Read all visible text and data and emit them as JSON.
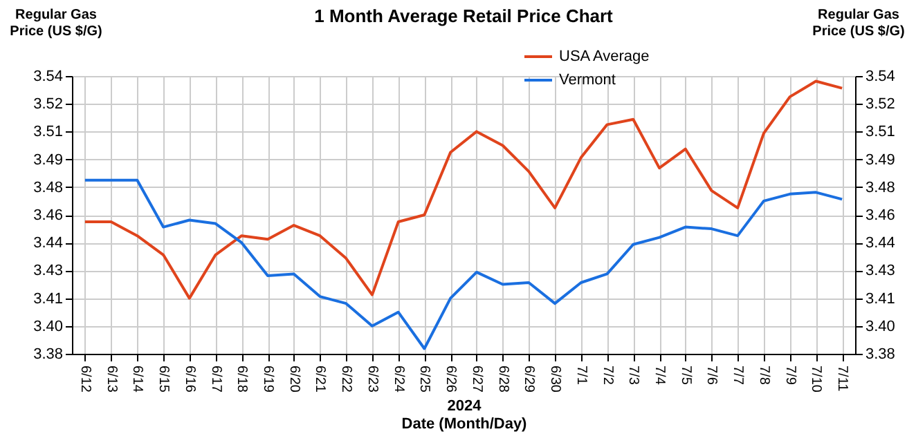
{
  "chart_data": {
    "type": "line",
    "title": "1 Month Average Retail Price Chart",
    "xlabel": "Date (Month/Day)",
    "ylabel": "Regular Gas Price (US $/G)",
    "y2label": "Regular Gas Price (US $/G)",
    "annotations": [
      "2024"
    ],
    "categories": [
      "6/12",
      "6/13",
      "6/14",
      "6/15",
      "6/16",
      "6/17",
      "6/18",
      "6/19",
      "6/20",
      "6/21",
      "6/22",
      "6/23",
      "6/24",
      "6/25",
      "6/26",
      "6/27",
      "6/28",
      "6/29",
      "6/30",
      "7/1",
      "7/2",
      "7/3",
      "7/4",
      "7/5",
      "7/6",
      "7/7",
      "7/8",
      "7/9",
      "7/10",
      "7/11"
    ],
    "series": [
      {
        "name": "USA Average",
        "color": "#e0441c",
        "values": [
          3.456,
          3.456,
          3.448,
          3.437,
          3.412,
          3.437,
          3.448,
          3.446,
          3.454,
          3.448,
          3.435,
          3.414,
          3.456,
          3.46,
          3.496,
          3.508,
          3.5,
          3.485,
          3.464,
          3.493,
          3.512,
          3.515,
          3.487,
          3.498,
          3.474,
          3.464,
          3.507,
          3.528,
          3.537,
          3.533
        ]
      },
      {
        "name": "Vermont",
        "color": "#1a6fe0",
        "values": [
          3.48,
          3.48,
          3.48,
          3.453,
          3.457,
          3.455,
          3.444,
          3.425,
          3.426,
          3.413,
          3.409,
          3.396,
          3.404,
          3.383,
          3.412,
          3.427,
          3.42,
          3.421,
          3.409,
          3.421,
          3.426,
          3.443,
          3.447,
          3.453,
          3.452,
          3.448,
          3.468,
          3.472,
          3.473,
          3.469
        ]
      }
    ],
    "ylim": [
      3.38,
      3.54
    ],
    "yticks": [
      3.38,
      {
        "value": 3.396,
        "label": "3.40"
      },
      {
        "value": 3.412,
        "label": "3.41"
      },
      {
        "value": 3.428,
        "label": "3.43"
      },
      {
        "value": 3.444,
        "label": "3.44"
      },
      {
        "value": 3.46,
        "label": "3.46"
      },
      {
        "value": 3.476,
        "label": "3.48"
      },
      {
        "value": 3.492,
        "label": "3.49"
      },
      {
        "value": 3.508,
        "label": "3.51"
      },
      {
        "value": 3.524,
        "label": "3.52"
      },
      3.54
    ],
    "y2lim": [
      3.38,
      3.54
    ],
    "y2ticks": [
      3.38,
      {
        "value": 3.396,
        "label": "3.40"
      },
      {
        "value": 3.412,
        "label": "3.41"
      },
      {
        "value": 3.428,
        "label": "3.43"
      },
      {
        "value": 3.444,
        "label": "3.44"
      },
      {
        "value": 3.46,
        "label": "3.46"
      },
      {
        "value": 3.476,
        "label": "3.48"
      },
      {
        "value": 3.492,
        "label": "3.49"
      },
      {
        "value": 3.508,
        "label": "3.51"
      },
      {
        "value": 3.524,
        "label": "3.52"
      },
      3.54
    ],
    "grid": true,
    "legend": "top right",
    "marker": "none",
    "line_style": "solid"
  }
}
